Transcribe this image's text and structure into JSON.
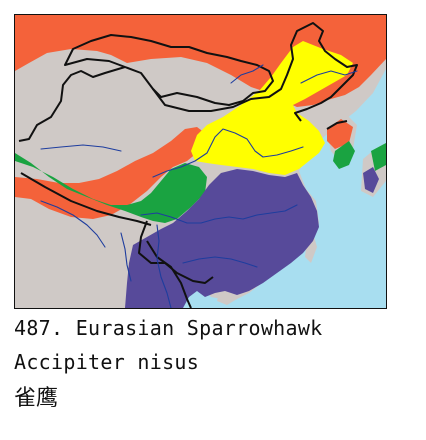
{
  "caption": {
    "title": "487. Eurasian Sparrowhawk",
    "scientific_name": "Accipiter nisus",
    "chinese_name": "雀鹰"
  },
  "legend_colors": {
    "breeding_summer": "#f4623a",
    "resident": "#1aa341",
    "passage_migrant": "#ffff00",
    "winter": "#574a9a",
    "land": "#cfc9c6",
    "sea": "#a8def0",
    "rivers": "#1e3d9e",
    "borders": "#111111"
  }
}
